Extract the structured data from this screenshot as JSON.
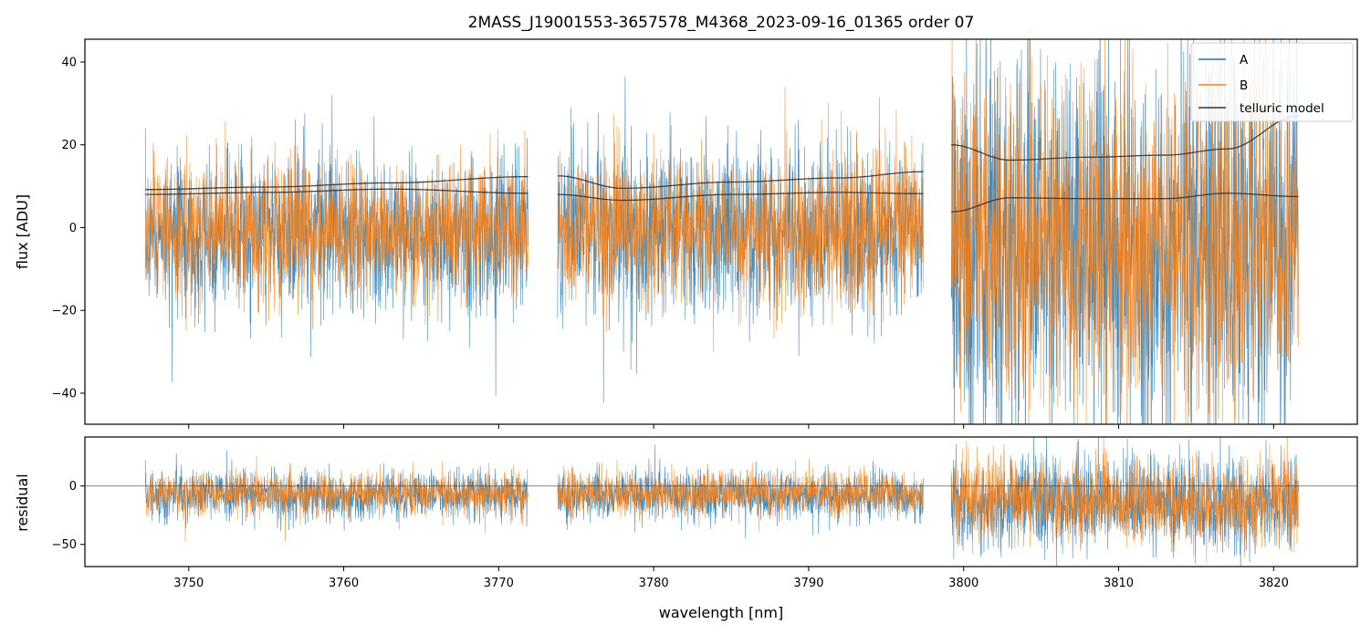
{
  "chart_data": [
    {
      "type": "line",
      "title": "2MASS_J19001553-3657578_M4368_2023-09-16_01365  order 07",
      "xlabel": "",
      "ylabel": "flux [ADU]",
      "xlim": [
        3743.3,
        3825.4
      ],
      "ylim": [
        -47.5,
        45.5
      ],
      "yticks": [
        -40,
        -20,
        0,
        20,
        40
      ],
      "yticklabels": [
        "−40",
        "−20",
        "0",
        "20",
        "40"
      ],
      "xticks": [
        3750,
        3760,
        3770,
        3780,
        3790,
        3800,
        3810,
        3820
      ],
      "legend_position": "top-right",
      "legend": [
        "A",
        "B",
        "telluric model"
      ],
      "segments": [
        {
          "x_start": 3747.2,
          "x_end": 3771.9
        },
        {
          "x_start": 3773.8,
          "x_end": 3797.4
        },
        {
          "x_start": 3799.2,
          "x_end": 3821.6
        }
      ],
      "series": [
        {
          "name": "A",
          "color": "#1f77b4",
          "description_level": "noise around ~0 with spread increasing in third segment"
        },
        {
          "name": "B",
          "color": "#ff7f0e"
        },
        {
          "name": "telluric model",
          "color": "#333333",
          "upper": [
            {
              "x": [
                3747.2,
                3755,
                3763,
                3771.9
              ],
              "y": [
                9.2,
                9.8,
                10.8,
                12.3
              ]
            },
            {
              "x": [
                3773.8,
                3778,
                3785,
                3792,
                3797.4
              ],
              "y": [
                12.5,
                9.5,
                11.0,
                12.0,
                13.5
              ]
            },
            {
              "x": [
                3799.2,
                3803,
                3808,
                3813,
                3817,
                3821.6
              ],
              "y": [
                20.0,
                16.3,
                17.0,
                17.5,
                19.0,
                27.0
              ]
            }
          ],
          "lower": [
            {
              "x": [
                3747.2,
                3755,
                3763,
                3771.9
              ],
              "y": [
                8.0,
                8.5,
                9.3,
                8.3
              ]
            },
            {
              "x": [
                3773.8,
                3778,
                3785,
                3792,
                3797.4
              ],
              "y": [
                8.0,
                6.6,
                8.0,
                8.5,
                8.2
              ]
            },
            {
              "x": [
                3799.2,
                3803,
                3808,
                3813,
                3817,
                3821.6
              ],
              "y": [
                3.8,
                7.2,
                7.0,
                7.0,
                8.3,
                7.5
              ]
            }
          ]
        }
      ]
    },
    {
      "type": "line",
      "xlabel": "wavelength [nm]",
      "ylabel": "residual",
      "xlim": [
        3743.3,
        3825.4
      ],
      "ylim": [
        -69,
        42
      ],
      "yticks": [
        -50,
        0
      ],
      "yticklabels": [
        "−50",
        "0"
      ],
      "xticks": [
        3750,
        3760,
        3770,
        3780,
        3790,
        3800,
        3810,
        3820
      ],
      "xticklabels": [
        "3750",
        "3760",
        "3770",
        "3780",
        "3790",
        "3800",
        "3810",
        "3820"
      ],
      "zero_line": true
    }
  ]
}
